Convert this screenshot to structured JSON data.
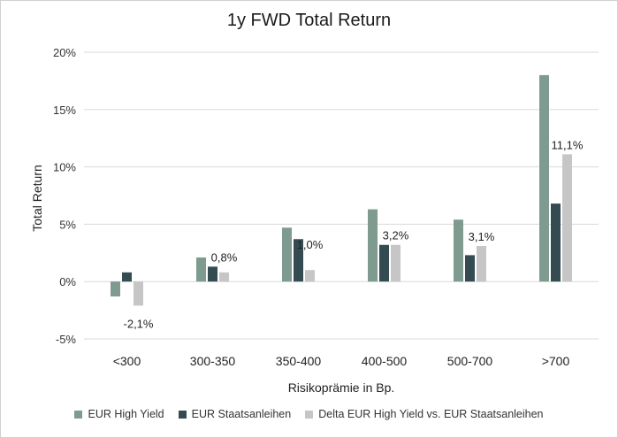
{
  "chart_data": {
    "type": "bar",
    "title": "1y FWD Total Return",
    "xlabel": "Risikoprämie in Bp.",
    "ylabel": "Total Return",
    "ylim": [
      -5,
      20
    ],
    "yticks": [
      20,
      15,
      10,
      5,
      0,
      -5
    ],
    "ytick_labels": [
      "20%",
      "15%",
      "10%",
      "5%",
      "0%",
      "-5%"
    ],
    "categories": [
      "<300",
      "300-350",
      "350-400",
      "400-500",
      "500-700",
      ">700"
    ],
    "grid": true,
    "legend_position": "bottom",
    "series": [
      {
        "name": "EUR High Yield",
        "color": "#7f9a8f",
        "values": [
          -1.3,
          2.1,
          4.7,
          6.3,
          5.4,
          18.0
        ]
      },
      {
        "name": "EUR Staatsanleihen",
        "color": "#344c51",
        "values": [
          0.8,
          1.3,
          3.7,
          3.2,
          2.3,
          6.8
        ]
      },
      {
        "name": "Delta EUR High Yield vs. EUR Staatsanleihen",
        "color": "#c6c6c6",
        "values": [
          -2.1,
          0.8,
          1.0,
          3.2,
          3.1,
          11.1
        ]
      }
    ],
    "data_labels": [
      "-2,1%",
      "0,8%",
      "1,0%",
      "3,2%",
      "3,1%",
      "11,1%"
    ]
  }
}
